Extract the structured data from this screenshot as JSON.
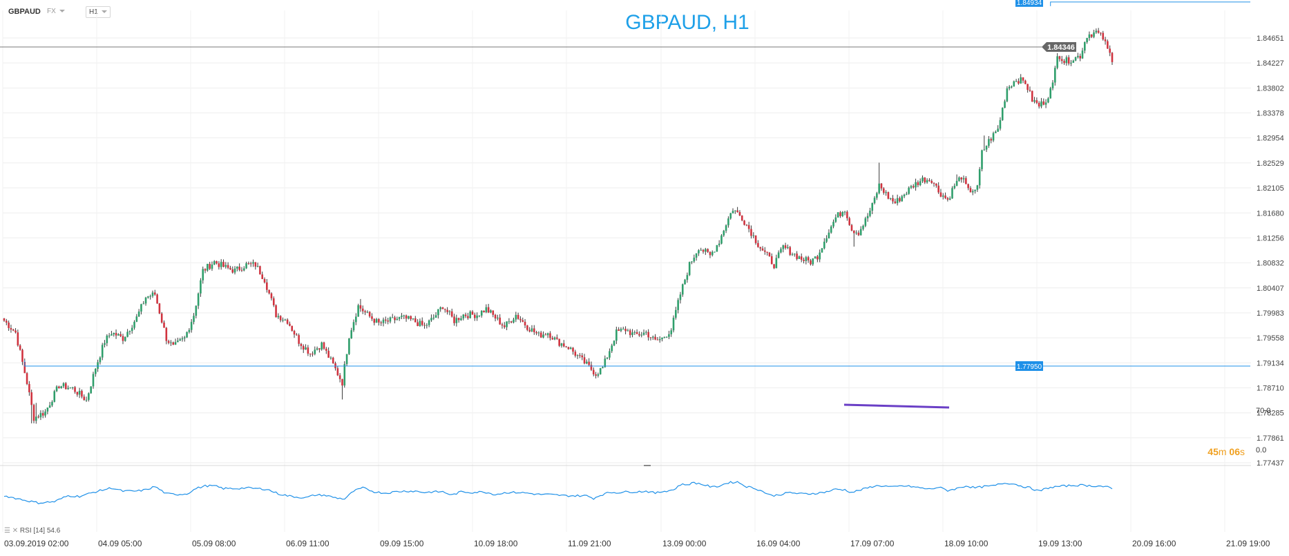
{
  "toolbar": {
    "symbol": "GBPAUD",
    "exchange": "FX",
    "timeframe": "H1"
  },
  "chart_data": {
    "type": "candlestick",
    "title": "GBPAUD, H1",
    "price_axis": {
      "ticks": [
        "1.84651",
        "1.84227",
        "1.83802",
        "1.83378",
        "1.82954",
        "1.82529",
        "1.82105",
        "1.81680",
        "1.81256",
        "1.80832",
        "1.80407",
        "1.79983",
        "1.79558",
        "1.79134",
        "1.78710",
        "1.78285",
        "1.77861",
        "1.77437"
      ],
      "range": [
        1.77437,
        1.84651
      ]
    },
    "time_axis": [
      "03.09.2019 02:00",
      "04.09 05:00",
      "05.09 08:00",
      "06.09 11:00",
      "09.09 15:00",
      "10.09 18:00",
      "11.09 21:00",
      "13.09 00:00",
      "16.09 04:00",
      "17.09 07:00",
      "18.09 10:00",
      "19.09 13:00",
      "20.09 16:00",
      "21.09 19:00"
    ],
    "current_price": "1.84346",
    "high_level": {
      "label": "1.84934",
      "value": 1.84934
    },
    "low_level": {
      "label": "1.77950",
      "value": 1.7795
    },
    "countdown": {
      "minutes": "45",
      "min_unit": "m",
      "seconds": "06",
      "sec_unit": "s"
    },
    "path_anchors": [
      [
        0,
        1.7985
      ],
      [
        5,
        1.7965
      ],
      [
        10,
        1.788
      ],
      [
        13,
        1.782
      ],
      [
        18,
        1.783
      ],
      [
        24,
        1.7875
      ],
      [
        30,
        1.787
      ],
      [
        36,
        1.785
      ],
      [
        40,
        1.7905
      ],
      [
        44,
        1.795
      ],
      [
        47,
        1.7965
      ],
      [
        52,
        1.7955
      ],
      [
        58,
        1.799
      ],
      [
        62,
        1.8025
      ],
      [
        66,
        1.803
      ],
      [
        71,
        1.7955
      ],
      [
        74,
        1.794
      ],
      [
        79,
        1.7955
      ],
      [
        83,
        1.7995
      ],
      [
        87,
        1.807
      ],
      [
        92,
        1.8085
      ],
      [
        97,
        1.8075
      ],
      [
        101,
        1.807
      ],
      [
        106,
        1.808
      ],
      [
        110,
        1.808
      ],
      [
        114,
        1.8055
      ],
      [
        119,
        1.7995
      ],
      [
        124,
        1.7985
      ],
      [
        129,
        1.795
      ],
      [
        134,
        1.793
      ],
      [
        139,
        1.7945
      ],
      [
        144,
        1.791
      ],
      [
        148,
        1.788
      ],
      [
        151,
        1.796
      ],
      [
        155,
        1.801
      ],
      [
        159,
        1.7995
      ],
      [
        164,
        1.798
      ],
      [
        169,
        1.7985
      ],
      [
        174,
        1.799
      ],
      [
        179,
        1.7985
      ],
      [
        184,
        1.7975
      ],
      [
        188,
        1.799
      ],
      [
        192,
        1.801
      ],
      [
        197,
        1.7985
      ],
      [
        201,
        1.7995
      ],
      [
        207,
        1.7995
      ],
      [
        211,
        1.8005
      ],
      [
        215,
        1.799
      ],
      [
        219,
        1.7975
      ],
      [
        224,
        1.7995
      ],
      [
        229,
        1.7975
      ],
      [
        234,
        1.796
      ],
      [
        238,
        1.7965
      ],
      [
        242,
        1.795
      ],
      [
        247,
        1.794
      ],
      [
        251,
        1.7925
      ],
      [
        255,
        1.791
      ],
      [
        259,
        1.7895
      ],
      [
        262,
        1.7905
      ],
      [
        265,
        1.7935
      ],
      [
        268,
        1.7965
      ],
      [
        272,
        1.797
      ],
      [
        276,
        1.796
      ],
      [
        281,
        1.7965
      ],
      [
        285,
        1.795
      ],
      [
        288,
        1.7955
      ],
      [
        292,
        1.797
      ],
      [
        296,
        1.803
      ],
      [
        300,
        1.808
      ],
      [
        304,
        1.811
      ],
      [
        309,
        1.8095
      ],
      [
        313,
        1.812
      ],
      [
        316,
        1.815
      ],
      [
        319,
        1.8175
      ],
      [
        323,
        1.816
      ],
      [
        327,
        1.8135
      ],
      [
        330,
        1.8115
      ],
      [
        334,
        1.8095
      ],
      [
        337,
        1.808
      ],
      [
        341,
        1.811
      ],
      [
        345,
        1.81
      ],
      [
        349,
        1.809
      ],
      [
        353,
        1.8085
      ],
      [
        356,
        1.8095
      ],
      [
        360,
        1.813
      ],
      [
        364,
        1.816
      ],
      [
        368,
        1.8175
      ],
      [
        371,
        1.814
      ],
      [
        374,
        1.8135
      ],
      [
        377,
        1.8155
      ],
      [
        380,
        1.818
      ],
      [
        383,
        1.8215
      ],
      [
        387,
        1.8195
      ],
      [
        390,
        1.8185
      ],
      [
        394,
        1.82
      ],
      [
        398,
        1.8215
      ],
      [
        402,
        1.8225
      ],
      [
        406,
        1.8225
      ],
      [
        409,
        1.8205
      ],
      [
        413,
        1.819
      ],
      [
        416,
        1.8215
      ],
      [
        419,
        1.823
      ],
      [
        422,
        1.8205
      ],
      [
        426,
        1.821
      ],
      [
        428,
        1.827
      ],
      [
        431,
        1.829
      ],
      [
        435,
        1.831
      ],
      [
        439,
        1.838
      ],
      [
        443,
        1.8395
      ],
      [
        447,
        1.839
      ],
      [
        450,
        1.836
      ],
      [
        453,
        1.835
      ],
      [
        456,
        1.836
      ],
      [
        459,
        1.8385
      ],
      [
        461,
        1.844
      ],
      [
        464,
        1.8425
      ],
      [
        468,
        1.843
      ],
      [
        471,
        1.8435
      ],
      [
        474,
        1.847
      ],
      [
        478,
        1.8475
      ],
      [
        481,
        1.8465
      ],
      [
        483,
        1.8445
      ],
      [
        485,
        1.843
      ]
    ],
    "rsi": {
      "label": "RSI [14]",
      "value": "54.6",
      "levels": [
        "70.0",
        "0.0"
      ],
      "anchors": [
        [
          0,
          55
        ],
        [
          8,
          49
        ],
        [
          15,
          44
        ],
        [
          22,
          46
        ],
        [
          28,
          55
        ],
        [
          33,
          54
        ],
        [
          40,
          61
        ],
        [
          47,
          67
        ],
        [
          52,
          62
        ],
        [
          58,
          62
        ],
        [
          62,
          64
        ],
        [
          66,
          69
        ],
        [
          71,
          58
        ],
        [
          76,
          57
        ],
        [
          80,
          58
        ],
        [
          84,
          66
        ],
        [
          88,
          70
        ],
        [
          92,
          70
        ],
        [
          96,
          66
        ],
        [
          102,
          66
        ],
        [
          106,
          67
        ],
        [
          110,
          66
        ],
        [
          115,
          65
        ],
        [
          120,
          58
        ],
        [
          124,
          55
        ],
        [
          128,
          53
        ],
        [
          132,
          52
        ],
        [
          136,
          56
        ],
        [
          140,
          56
        ],
        [
          145,
          52
        ],
        [
          149,
          50
        ],
        [
          153,
          62
        ],
        [
          157,
          67
        ],
        [
          162,
          61
        ],
        [
          167,
          59
        ],
        [
          171,
          61
        ],
        [
          175,
          62
        ],
        [
          180,
          62
        ],
        [
          184,
          60
        ],
        [
          188,
          61
        ],
        [
          192,
          61
        ],
        [
          196,
          56
        ],
        [
          200,
          61
        ],
        [
          205,
          60
        ],
        [
          210,
          61
        ],
        [
          215,
          57
        ],
        [
          220,
          60
        ],
        [
          225,
          60
        ],
        [
          229,
          59
        ],
        [
          234,
          57
        ],
        [
          238,
          57
        ],
        [
          242,
          56
        ],
        [
          246,
          55
        ],
        [
          250,
          55
        ],
        [
          255,
          55
        ],
        [
          258,
          51
        ],
        [
          261,
          56
        ],
        [
          265,
          60
        ],
        [
          269,
          60
        ],
        [
          273,
          61
        ],
        [
          277,
          61
        ],
        [
          281,
          62
        ],
        [
          285,
          59
        ],
        [
          289,
          62
        ],
        [
          293,
          64
        ],
        [
          296,
          72
        ],
        [
          299,
          72
        ],
        [
          302,
          75
        ],
        [
          306,
          72
        ],
        [
          310,
          68
        ],
        [
          313,
          70
        ],
        [
          317,
          75
        ],
        [
          321,
          76
        ],
        [
          325,
          69
        ],
        [
          329,
          66
        ],
        [
          333,
          60
        ],
        [
          336,
          55
        ],
        [
          340,
          57
        ],
        [
          344,
          60
        ],
        [
          348,
          58
        ],
        [
          352,
          58
        ],
        [
          356,
          59
        ],
        [
          360,
          61
        ],
        [
          364,
          65
        ],
        [
          368,
          64
        ],
        [
          371,
          60
        ],
        [
          374,
          63
        ],
        [
          377,
          66
        ],
        [
          381,
          70
        ],
        [
          385,
          70
        ],
        [
          389,
          68
        ],
        [
          393,
          70
        ],
        [
          397,
          69
        ],
        [
          401,
          67
        ],
        [
          405,
          65
        ],
        [
          409,
          68
        ],
        [
          413,
          63
        ],
        [
          417,
          66
        ],
        [
          421,
          70
        ],
        [
          425,
          67
        ],
        [
          429,
          69
        ],
        [
          433,
          70
        ],
        [
          437,
          74
        ],
        [
          441,
          74
        ],
        [
          445,
          70
        ],
        [
          449,
          67
        ],
        [
          453,
          62
        ],
        [
          457,
          67
        ],
        [
          461,
          69
        ],
        [
          465,
          70
        ],
        [
          469,
          71
        ],
        [
          473,
          71
        ],
        [
          476,
          70
        ],
        [
          479,
          70
        ],
        [
          483,
          68
        ],
        [
          486,
          64
        ]
      ]
    }
  }
}
